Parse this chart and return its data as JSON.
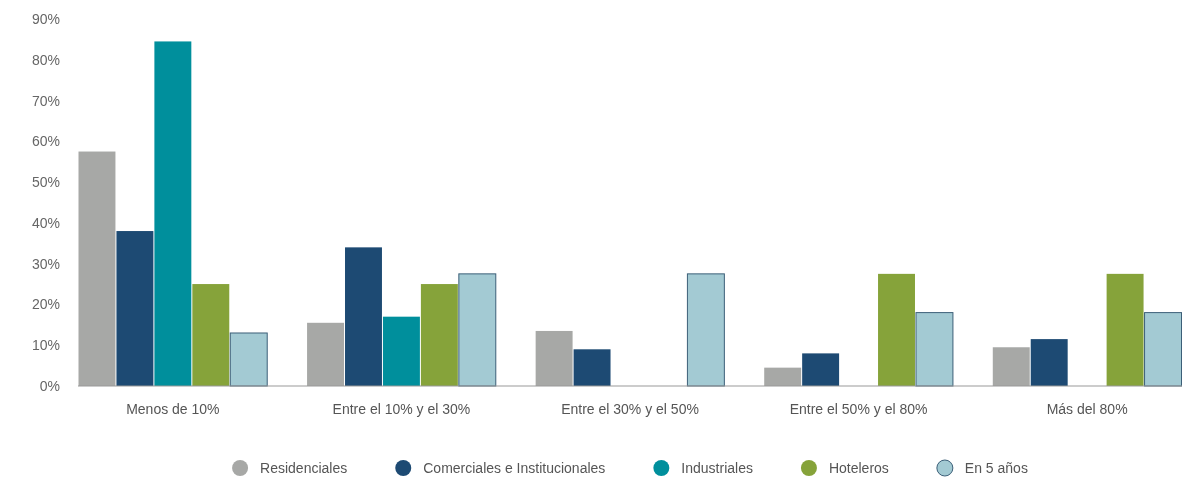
{
  "chart_data": {
    "type": "bar",
    "categories": [
      "Menos de 10%",
      "Entre el 10% y el 30%",
      "Entre el 30% y el 50%",
      "Entre el 50% y el 80%",
      "Más del 80%"
    ],
    "series": [
      {
        "name": "Residenciales",
        "color": "#a7a8a6",
        "values": [
          57.5,
          15.5,
          13.5,
          4.5,
          9.5
        ]
      },
      {
        "name": "Comerciales e Institucionales",
        "color": "#1d4a73",
        "values": [
          38,
          34,
          9,
          8,
          11.5
        ]
      },
      {
        "name": "Industriales",
        "color": "#008f9c",
        "values": [
          84.5,
          17,
          null,
          null,
          null
        ]
      },
      {
        "name": "Hoteleros",
        "color": "#86a33a",
        "values": [
          25,
          25,
          null,
          27.5,
          27.5
        ]
      },
      {
        "name": "En 5 años",
        "color": "#a3cad3",
        "values": [
          13,
          27.5,
          27.5,
          18,
          18
        ]
      }
    ],
    "ylim": [
      0,
      90
    ],
    "yticks": [
      {
        "value": 0,
        "label": "0%"
      },
      {
        "value": 10,
        "label": "10%"
      },
      {
        "value": 20,
        "label": "20%"
      },
      {
        "value": 30,
        "label": "30%"
      },
      {
        "value": 40,
        "label": "40%"
      },
      {
        "value": 50,
        "label": "50%"
      },
      {
        "value": 60,
        "label": "60%"
      },
      {
        "value": 70,
        "label": "70%"
      },
      {
        "value": 80,
        "label": "80%"
      },
      {
        "value": 90,
        "label": "90%"
      }
    ],
    "grid": false,
    "legend": "bottom"
  }
}
